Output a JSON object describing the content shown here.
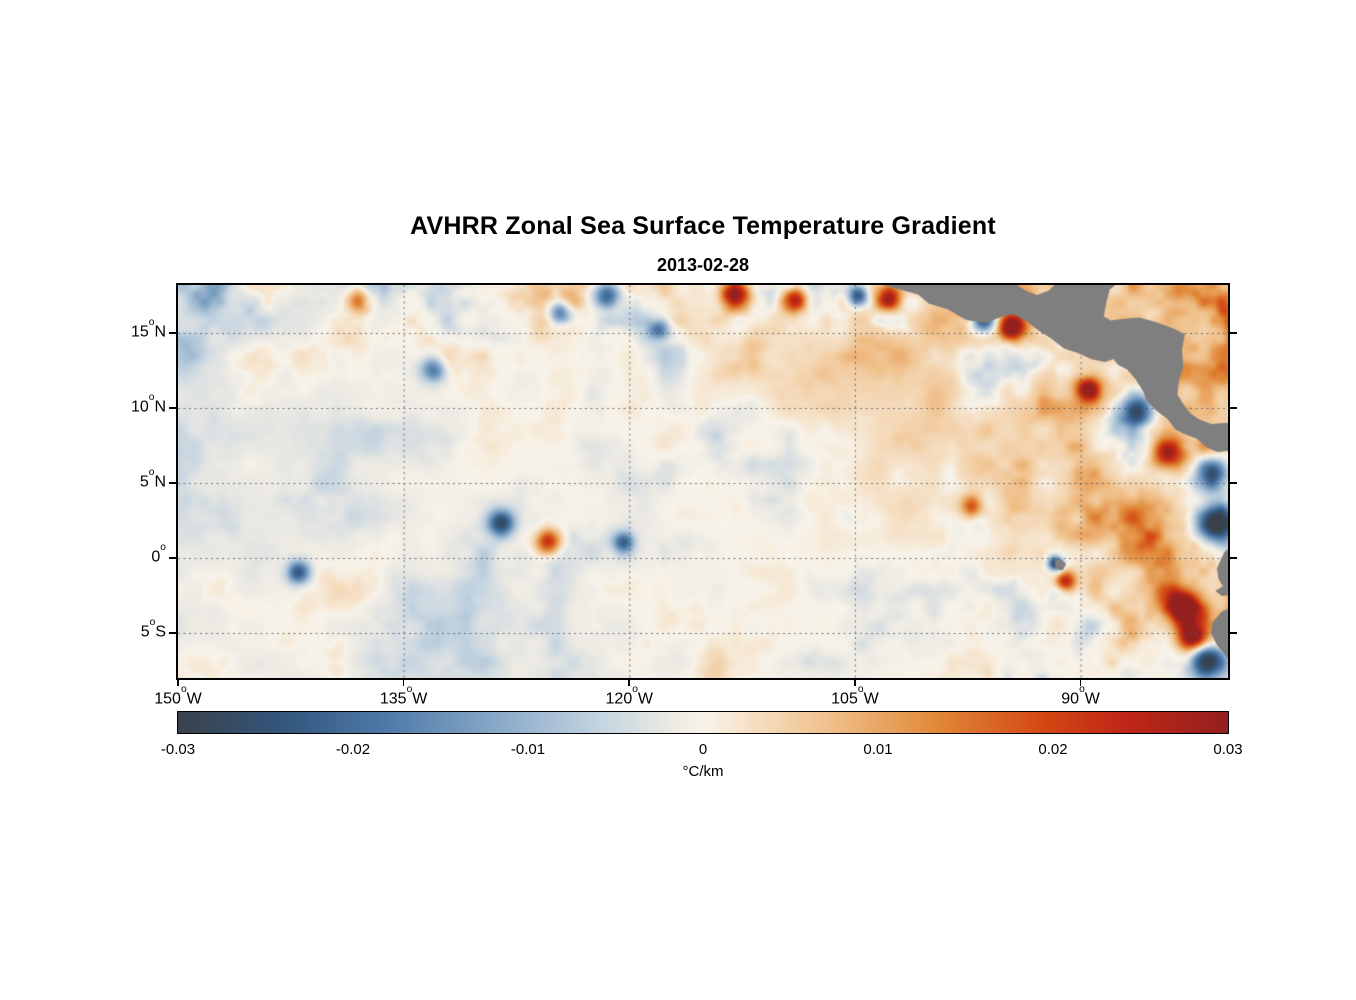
{
  "chart_data": {
    "type": "heatmap",
    "title": "AVHRR Zonal Sea Surface Temperature Gradient",
    "date": "2013-02-28",
    "colorbar_label": "°C/km",
    "lon_range": [
      -150,
      -80.2
    ],
    "lat_range": [
      -8,
      18.2
    ],
    "grid": {
      "on": true,
      "style": "dotted"
    },
    "x_ticks": [
      {
        "num": "150",
        "deg": "o",
        "hem": "W",
        "label": "150°W",
        "lon": -150
      },
      {
        "num": "135",
        "deg": "o",
        "hem": "W",
        "label": "135°W",
        "lon": -135
      },
      {
        "num": "120",
        "deg": "o",
        "hem": "W",
        "label": "120°W",
        "lon": -120
      },
      {
        "num": "105",
        "deg": "o",
        "hem": "W",
        "label": "105°W",
        "lon": -105
      },
      {
        "num": "90",
        "deg": "o",
        "hem": "W",
        "label": "90°W",
        "lon": -90
      }
    ],
    "y_ticks": [
      {
        "num": "15",
        "deg": "o",
        "hem": "N",
        "label": "15°N",
        "lat": 15
      },
      {
        "num": "10",
        "deg": "o",
        "hem": "N",
        "label": "10°N",
        "lat": 10
      },
      {
        "num": "5",
        "deg": "o",
        "hem": "N",
        "label": "5°N",
        "lat": 5
      },
      {
        "num": "0",
        "deg": "o",
        "hem": "",
        "label": "0°",
        "lat": 0
      },
      {
        "num": "5",
        "deg": "o",
        "hem": "S",
        "label": "5°S",
        "lat": -5
      }
    ],
    "colorbar": {
      "min": -0.03,
      "max": 0.03,
      "tick_values": [
        -0.03,
        -0.02,
        -0.01,
        0,
        0.01,
        0.02,
        0.03
      ],
      "tick_labels": [
        "-0.03",
        "-0.02",
        "-0.01",
        "0",
        "0.01",
        "0.02",
        "0.03"
      ]
    },
    "colormap_stops": [
      [
        0.0,
        "#39424b"
      ],
      [
        0.1,
        "#33567c"
      ],
      [
        0.2,
        "#4e7aa9"
      ],
      [
        0.3,
        "#86a7c6"
      ],
      [
        0.4,
        "#c3d3e0"
      ],
      [
        0.47,
        "#eceae3"
      ],
      [
        0.5,
        "#f7f3ea"
      ],
      [
        0.53,
        "#f6e7d2"
      ],
      [
        0.62,
        "#f0c08a"
      ],
      [
        0.72,
        "#e18a3a"
      ],
      [
        0.82,
        "#d44a14"
      ],
      [
        0.9,
        "#c02717"
      ],
      [
        1.0,
        "#93201f"
      ]
    ],
    "land_color": "#7f7f7f",
    "land_polygons": [
      [
        [
          -103.3,
          18.3
        ],
        [
          -101.9,
          17.9
        ],
        [
          -100.8,
          17.6
        ],
        [
          -100.1,
          17.0
        ],
        [
          -98.8,
          16.6
        ],
        [
          -97.6,
          15.9
        ],
        [
          -96.3,
          15.7
        ],
        [
          -95.3,
          16.1
        ],
        [
          -94.5,
          16.3
        ],
        [
          -93.7,
          15.9
        ],
        [
          -92.8,
          15.2
        ],
        [
          -92.0,
          14.7
        ],
        [
          -91.1,
          14.0
        ],
        [
          -90.2,
          13.7
        ],
        [
          -89.3,
          13.3
        ],
        [
          -88.4,
          13.1
        ],
        [
          -87.8,
          13.3
        ],
        [
          -87.5,
          12.9
        ],
        [
          -86.9,
          12.6
        ],
        [
          -86.3,
          11.9
        ],
        [
          -85.8,
          11.1
        ],
        [
          -85.6,
          10.5
        ],
        [
          -85.2,
          10.1
        ],
        [
          -84.9,
          9.8
        ],
        [
          -84.2,
          9.3
        ],
        [
          -83.7,
          8.6
        ],
        [
          -83.1,
          8.3
        ],
        [
          -82.3,
          8.0
        ],
        [
          -81.6,
          7.4
        ],
        [
          -80.9,
          7.1
        ],
        [
          -79.9,
          7.2
        ],
        [
          -79.9,
          9.0
        ],
        [
          -81.3,
          8.9
        ],
        [
          -82.1,
          9.2
        ],
        [
          -82.7,
          9.6
        ],
        [
          -83.1,
          10.1
        ],
        [
          -83.6,
          10.9
        ],
        [
          -83.5,
          11.8
        ],
        [
          -83.2,
          12.8
        ],
        [
          -83.3,
          13.9
        ],
        [
          -83.1,
          14.9
        ],
        [
          -83.9,
          15.3
        ],
        [
          -85.0,
          15.7
        ],
        [
          -86.1,
          16.0
        ],
        [
          -87.2,
          15.9
        ],
        [
          -88.0,
          15.8
        ],
        [
          -88.5,
          16.1
        ],
        [
          -88.3,
          17.1
        ],
        [
          -88.1,
          17.9
        ],
        [
          -87.6,
          18.3
        ],
        [
          -91.6,
          18.3
        ],
        [
          -92.1,
          17.8
        ],
        [
          -92.9,
          17.5
        ],
        [
          -93.7,
          17.8
        ],
        [
          -94.4,
          18.3
        ]
      ],
      [
        [
          -79.9,
          0.8
        ],
        [
          -80.4,
          0.4
        ],
        [
          -80.6,
          0.0
        ],
        [
          -80.9,
          -0.7
        ],
        [
          -80.8,
          -1.4
        ],
        [
          -80.5,
          -1.9
        ],
        [
          -81.0,
          -2.2
        ],
        [
          -80.6,
          -2.5
        ],
        [
          -79.9,
          -2.4
        ]
      ],
      [
        [
          -79.9,
          -3.3
        ],
        [
          -80.6,
          -3.6
        ],
        [
          -81.2,
          -4.3
        ],
        [
          -81.3,
          -5.0
        ],
        [
          -80.9,
          -5.8
        ],
        [
          -80.4,
          -6.4
        ],
        [
          -80.0,
          -7.0
        ],
        [
          -79.9,
          -8.3
        ]
      ],
      [
        [
          -91.7,
          -0.2
        ],
        [
          -91.3,
          -0.1
        ],
        [
          -91.0,
          -0.4
        ],
        [
          -91.2,
          -0.8
        ],
        [
          -91.6,
          -0.7
        ]
      ]
    ],
    "features": [
      {
        "lon": -113.0,
        "lat": 17.6,
        "amp": 0.032,
        "r": 1.1
      },
      {
        "lon": -109.0,
        "lat": 17.2,
        "amp": 0.028,
        "r": 0.9
      },
      {
        "lon": -102.7,
        "lat": 17.3,
        "amp": 0.028,
        "r": 0.9
      },
      {
        "lon": -104.8,
        "lat": 17.5,
        "amp": -0.026,
        "r": 0.7
      },
      {
        "lon": -96.4,
        "lat": 15.9,
        "amp": -0.03,
        "r": 0.9
      },
      {
        "lon": -94.6,
        "lat": 15.4,
        "amp": 0.033,
        "r": 0.9
      },
      {
        "lon": -121.5,
        "lat": 17.5,
        "amp": -0.022,
        "r": 0.9
      },
      {
        "lon": -124.6,
        "lat": 16.4,
        "amp": -0.024,
        "r": 0.8
      },
      {
        "lon": -138.0,
        "lat": 17.2,
        "amp": 0.022,
        "r": 0.9
      },
      {
        "lon": -133.0,
        "lat": 12.5,
        "amp": -0.02,
        "r": 0.9
      },
      {
        "lon": -118.0,
        "lat": 15.2,
        "amp": -0.02,
        "r": 0.8
      },
      {
        "lon": -89.5,
        "lat": 11.2,
        "amp": 0.03,
        "r": 0.8
      },
      {
        "lon": -86.3,
        "lat": 9.8,
        "amp": -0.032,
        "r": 1.1
      },
      {
        "lon": -84.2,
        "lat": 7.0,
        "amp": 0.03,
        "r": 1.1
      },
      {
        "lon": -81.4,
        "lat": 5.5,
        "amp": -0.034,
        "r": 1.2
      },
      {
        "lon": -81.0,
        "lat": 2.2,
        "amp": -0.034,
        "r": 1.3
      },
      {
        "lon": -83.2,
        "lat": -3.3,
        "amp": 0.034,
        "r": 1.2
      },
      {
        "lon": -82.6,
        "lat": -5.4,
        "amp": 0.03,
        "r": 1.0
      },
      {
        "lon": -81.6,
        "lat": -6.9,
        "amp": -0.034,
        "r": 1.3
      },
      {
        "lon": -128.5,
        "lat": 2.3,
        "amp": -0.026,
        "r": 0.9
      },
      {
        "lon": -125.4,
        "lat": 1.0,
        "amp": 0.026,
        "r": 0.9
      },
      {
        "lon": -120.4,
        "lat": 1.0,
        "amp": -0.02,
        "r": 0.7
      },
      {
        "lon": -142.0,
        "lat": -1.0,
        "amp": -0.022,
        "r": 0.8
      },
      {
        "lon": -91.0,
        "lat": -1.6,
        "amp": 0.026,
        "r": 0.7
      },
      {
        "lon": -91.7,
        "lat": -0.4,
        "amp": -0.028,
        "r": 0.5
      },
      {
        "lon": -97.2,
        "lat": 3.4,
        "amp": 0.02,
        "r": 0.8
      }
    ]
  }
}
